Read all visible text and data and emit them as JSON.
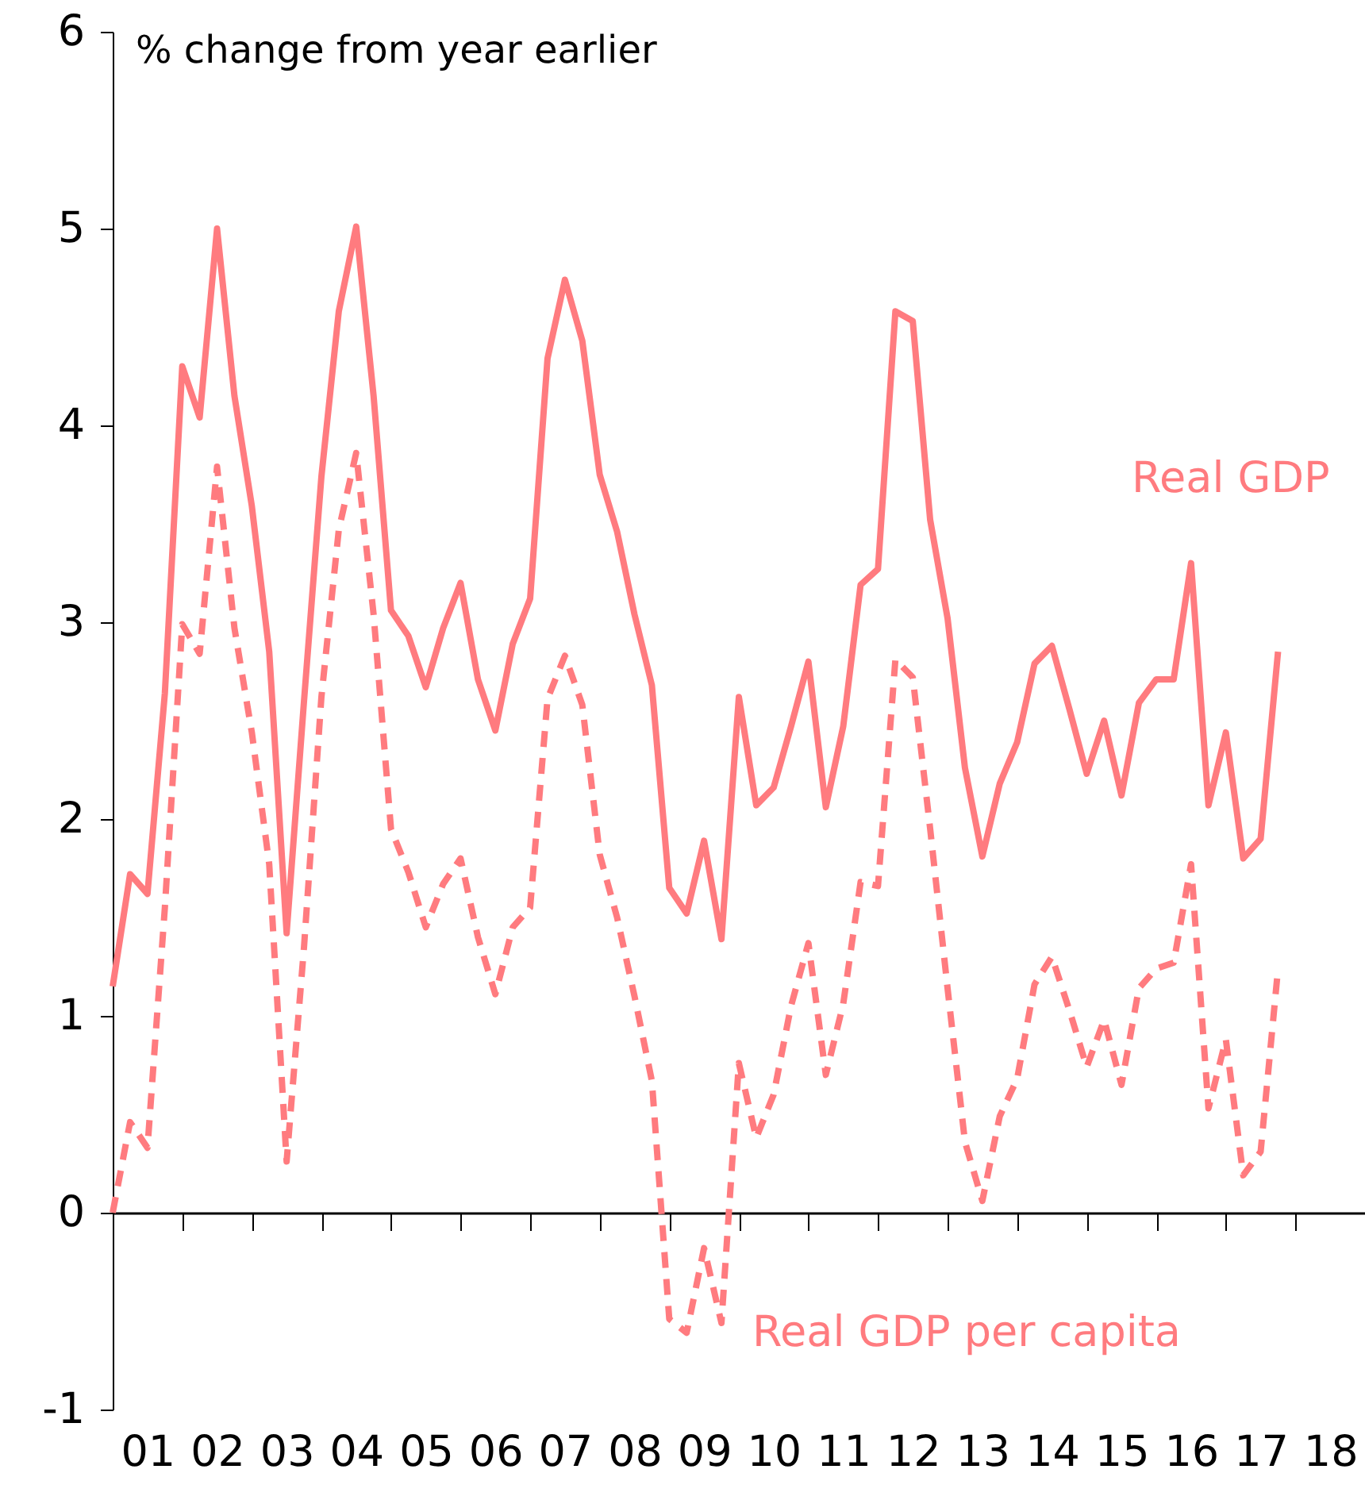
{
  "chart_data": {
    "type": "line",
    "ylabel": "% change from year earlier",
    "x": [
      0.5,
      0.75,
      1,
      1.25,
      1.5,
      1.75,
      2,
      2.25,
      2.5,
      2.75,
      3,
      3.25,
      3.5,
      3.75,
      4,
      4.25,
      4.5,
      4.75,
      5,
      5.25,
      5.5,
      5.75,
      6,
      6.25,
      6.5,
      6.75,
      7,
      7.25,
      7.5,
      7.75,
      8,
      8.25,
      8.5,
      8.75,
      9,
      9.25,
      9.5,
      9.75,
      10,
      10.25,
      10.5,
      10.75,
      11,
      11.25,
      11.5,
      11.75,
      12,
      12.25,
      12.5,
      12.75,
      13,
      13.25,
      13.5,
      13.75,
      14,
      14.25,
      14.5,
      14.75,
      15,
      15.25,
      15.5,
      15.75,
      16,
      16.25,
      16.5,
      16.75,
      17,
      17.25
    ],
    "series": [
      {
        "name": "Real GDP",
        "color": "#ff7b7f",
        "line_style": "solid",
        "values": [
          1.15,
          1.72,
          1.62,
          2.64,
          4.3,
          4.04,
          5.0,
          4.15,
          3.59,
          2.85,
          1.42,
          2.6,
          3.74,
          4.58,
          5.01,
          4.15,
          3.06,
          2.93,
          2.67,
          2.97,
          3.2,
          2.71,
          2.45,
          2.89,
          3.12,
          4.34,
          4.74,
          4.43,
          3.75,
          3.46,
          3.04,
          2.68,
          1.65,
          1.52,
          1.89,
          1.39,
          2.62,
          2.07,
          2.16,
          2.47,
          2.8,
          2.06,
          2.47,
          3.19,
          3.27,
          4.58,
          4.53,
          3.52,
          3.02,
          2.26,
          1.81,
          2.18,
          2.39,
          2.79,
          2.88,
          2.56,
          2.23,
          2.5,
          2.12,
          2.59,
          2.71,
          2.71,
          3.3,
          2.07,
          2.44,
          1.8,
          1.9,
          2.85
        ]
      },
      {
        "name": "Real GDP per capita",
        "color": "#ff7b7f",
        "line_style": "dashed",
        "values": [
          0.0,
          0.46,
          0.33,
          1.55,
          2.99,
          2.84,
          3.79,
          2.97,
          2.44,
          1.77,
          0.26,
          1.35,
          2.62,
          3.47,
          3.86,
          3.04,
          1.95,
          1.73,
          1.45,
          1.67,
          1.8,
          1.4,
          1.11,
          1.45,
          1.55,
          2.61,
          2.83,
          2.58,
          1.82,
          1.5,
          1.1,
          0.67,
          -0.54,
          -0.61,
          -0.18,
          -0.56,
          0.76,
          0.38,
          0.6,
          1.05,
          1.37,
          0.7,
          1.06,
          1.68,
          1.66,
          2.81,
          2.72,
          1.95,
          1.14,
          0.36,
          0.06,
          0.49,
          0.68,
          1.16,
          1.3,
          1.03,
          0.74,
          0.98,
          0.65,
          1.14,
          1.24,
          1.27,
          1.77,
          0.53,
          0.88,
          0.19,
          0.31,
          1.24
        ]
      }
    ],
    "xlim": [
      0.5,
      18.5
    ],
    "xticks": [
      {
        "value": 1,
        "label": "01"
      },
      {
        "value": 1.5,
        "label": null
      },
      {
        "value": 2,
        "label": "02"
      },
      {
        "value": 2.5,
        "label": null
      },
      {
        "value": 3,
        "label": "03"
      },
      {
        "value": 3.5,
        "label": null
      },
      {
        "value": 4,
        "label": "04"
      },
      {
        "value": 4.5,
        "label": null
      },
      {
        "value": 5,
        "label": "05"
      },
      {
        "value": 5.5,
        "label": null
      },
      {
        "value": 6,
        "label": "06"
      },
      {
        "value": 6.5,
        "label": null
      },
      {
        "value": 7,
        "label": "07"
      },
      {
        "value": 7.5,
        "label": null
      },
      {
        "value": 8,
        "label": "08"
      },
      {
        "value": 8.5,
        "label": null
      },
      {
        "value": 9,
        "label": "09"
      },
      {
        "value": 9.5,
        "label": null
      },
      {
        "value": 10,
        "label": "10"
      },
      {
        "value": 10.5,
        "label": null
      },
      {
        "value": 11,
        "label": "11"
      },
      {
        "value": 11.5,
        "label": null
      },
      {
        "value": 12,
        "label": "12"
      },
      {
        "value": 12.5,
        "label": null
      },
      {
        "value": 13,
        "label": "13"
      },
      {
        "value": 13.5,
        "label": null
      },
      {
        "value": 14,
        "label": "14"
      },
      {
        "value": 14.5,
        "label": null
      },
      {
        "value": 15,
        "label": "15"
      },
      {
        "value": 15.5,
        "label": null
      },
      {
        "value": 16,
        "label": "16"
      },
      {
        "value": 16.5,
        "label": null
      },
      {
        "value": 17,
        "label": "17"
      },
      {
        "value": 17.5,
        "label": null
      },
      {
        "value": 18,
        "label": "18"
      }
    ],
    "ylim": [
      -1,
      6
    ],
    "yticks": [
      -1,
      0,
      1,
      2,
      3,
      4,
      5,
      6
    ]
  }
}
